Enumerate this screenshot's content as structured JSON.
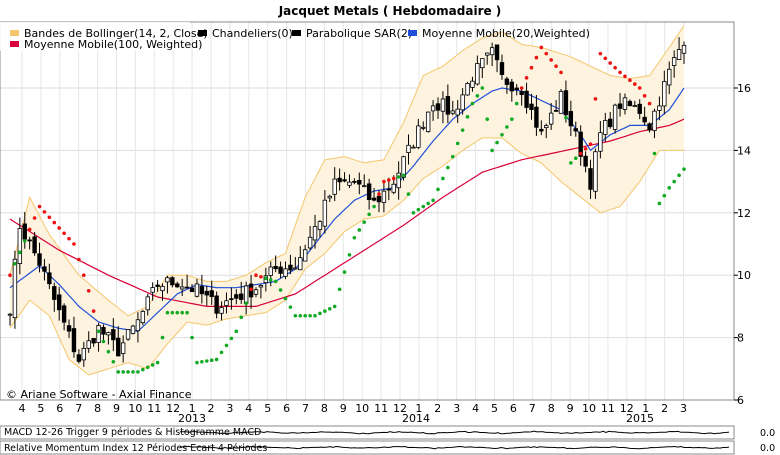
{
  "chart_data": {
    "type": "candlestick",
    "title": "Jacquet Metals  ( Hebdomadaire )",
    "legend": [
      {
        "label": "Bandes de Bollinger(14, 2, Close)",
        "color": "#f5c66b"
      },
      {
        "label": "Chandeliers(0)",
        "color": "#000000"
      },
      {
        "label": "Parabolique SAR(2)",
        "color": "#000000"
      },
      {
        "label": "Moyenne Mobile(20,Weighted)",
        "color": "#1f4fd8"
      },
      {
        "label": "Moyenne Mobile(100, Weighted)",
        "color": "#d8003a"
      }
    ],
    "legend_position": "top-left",
    "y_ticks": [
      "6",
      "8",
      "10",
      "12",
      "14",
      "16"
    ],
    "y_range": [
      6,
      18
    ],
    "x_month_labels": [
      "4",
      "5",
      "6",
      "7",
      "8",
      "9",
      "10",
      "11",
      "12",
      "1",
      "2",
      "3",
      "4",
      "5",
      "6",
      "7",
      "8",
      "9",
      "10",
      "11",
      "12",
      "1",
      "2",
      "3",
      "4",
      "5",
      "6",
      "7",
      "8",
      "9",
      "10",
      "11",
      "12",
      "1",
      "2",
      "3"
    ],
    "x_year_labels": [
      "2013",
      "2014",
      "2015"
    ],
    "grid": true,
    "series_key_points": {
      "close": [
        [
          0,
          9.0
        ],
        [
          2,
          11.6
        ],
        [
          6,
          10.4
        ],
        [
          10,
          8.8
        ],
        [
          14,
          7.3
        ],
        [
          18,
          8.3
        ],
        [
          22,
          7.6
        ],
        [
          26,
          8.5
        ],
        [
          30,
          9.7
        ],
        [
          34,
          9.8
        ],
        [
          38,
          9.5
        ],
        [
          42,
          9.0
        ],
        [
          46,
          9.3
        ],
        [
          50,
          9.6
        ],
        [
          54,
          10.2
        ],
        [
          58,
          10.3
        ],
        [
          62,
          11.5
        ],
        [
          66,
          12.9
        ],
        [
          70,
          13.0
        ],
        [
          74,
          12.3
        ],
        [
          78,
          13.0
        ],
        [
          82,
          14.3
        ],
        [
          86,
          15.6
        ],
        [
          90,
          15.2
        ],
        [
          94,
          16.4
        ],
        [
          98,
          17.1
        ],
        [
          100,
          16.3
        ],
        [
          104,
          16.0
        ],
        [
          108,
          14.5
        ],
        [
          112,
          15.7
        ],
        [
          116,
          14.0
        ],
        [
          118,
          13.0
        ],
        [
          120,
          14.5
        ],
        [
          124,
          15.5
        ],
        [
          128,
          15.3
        ],
        [
          130,
          14.8
        ],
        [
          134,
          16.5
        ],
        [
          137,
          17.6
        ]
      ],
      "ma20": [
        [
          0,
          9.6
        ],
        [
          6,
          10.3
        ],
        [
          10,
          9.7
        ],
        [
          14,
          9.0
        ],
        [
          18,
          8.5
        ],
        [
          22,
          8.3
        ],
        [
          26,
          8.2
        ],
        [
          30,
          8.8
        ],
        [
          34,
          9.4
        ],
        [
          38,
          9.7
        ],
        [
          42,
          9.6
        ],
        [
          46,
          9.6
        ],
        [
          50,
          9.7
        ],
        [
          54,
          9.8
        ],
        [
          58,
          10.2
        ],
        [
          62,
          11.0
        ],
        [
          66,
          11.8
        ],
        [
          70,
          12.4
        ],
        [
          74,
          12.7
        ],
        [
          78,
          12.8
        ],
        [
          82,
          13.5
        ],
        [
          86,
          14.3
        ],
        [
          90,
          15.0
        ],
        [
          94,
          15.5
        ],
        [
          98,
          15.9
        ],
        [
          100,
          16.0
        ],
        [
          104,
          15.9
        ],
        [
          108,
          15.6
        ],
        [
          112,
          15.3
        ],
        [
          116,
          14.5
        ],
        [
          118,
          14.0
        ],
        [
          122,
          14.5
        ],
        [
          126,
          14.8
        ],
        [
          130,
          14.8
        ],
        [
          134,
          15.3
        ],
        [
          137,
          16.0
        ]
      ],
      "ma100": [
        [
          0,
          11.8
        ],
        [
          10,
          10.8
        ],
        [
          20,
          10.0
        ],
        [
          30,
          9.3
        ],
        [
          40,
          9.0
        ],
        [
          50,
          9.0
        ],
        [
          58,
          9.4
        ],
        [
          64,
          10.0
        ],
        [
          72,
          10.8
        ],
        [
          80,
          11.6
        ],
        [
          88,
          12.5
        ],
        [
          96,
          13.3
        ],
        [
          104,
          13.7
        ],
        [
          110,
          13.9
        ],
        [
          116,
          14.1
        ],
        [
          122,
          14.3
        ],
        [
          128,
          14.6
        ],
        [
          134,
          14.8
        ],
        [
          137,
          15.0
        ]
      ],
      "bb_upper": [
        [
          0,
          10.0
        ],
        [
          4,
          12.5
        ],
        [
          8,
          11.3
        ],
        [
          14,
          10.0
        ],
        [
          20,
          9.2
        ],
        [
          24,
          8.7
        ],
        [
          28,
          9.0
        ],
        [
          32,
          10.0
        ],
        [
          36,
          10.0
        ],
        [
          40,
          9.8
        ],
        [
          44,
          9.8
        ],
        [
          48,
          10.0
        ],
        [
          52,
          10.4
        ],
        [
          56,
          10.7
        ],
        [
          60,
          12.5
        ],
        [
          64,
          13.7
        ],
        [
          68,
          13.8
        ],
        [
          72,
          13.6
        ],
        [
          76,
          13.7
        ],
        [
          80,
          14.9
        ],
        [
          84,
          16.4
        ],
        [
          88,
          16.7
        ],
        [
          92,
          17.2
        ],
        [
          96,
          17.6
        ],
        [
          100,
          17.8
        ],
        [
          104,
          17.4
        ],
        [
          108,
          17.3
        ],
        [
          112,
          17.1
        ],
        [
          114,
          17.0
        ],
        [
          118,
          16.7
        ],
        [
          122,
          16.4
        ],
        [
          126,
          16.3
        ],
        [
          130,
          16.4
        ],
        [
          134,
          17.3
        ],
        [
          137,
          18.0
        ]
      ],
      "bb_lower": [
        [
          0,
          8.3
        ],
        [
          4,
          9.2
        ],
        [
          8,
          8.7
        ],
        [
          12,
          7.3
        ],
        [
          16,
          6.8
        ],
        [
          20,
          7.0
        ],
        [
          24,
          7.2
        ],
        [
          28,
          7.0
        ],
        [
          32,
          7.8
        ],
        [
          36,
          8.5
        ],
        [
          40,
          8.4
        ],
        [
          44,
          8.6
        ],
        [
          48,
          8.7
        ],
        [
          52,
          8.8
        ],
        [
          56,
          9.2
        ],
        [
          60,
          10.2
        ],
        [
          64,
          10.7
        ],
        [
          68,
          11.4
        ],
        [
          72,
          11.8
        ],
        [
          76,
          11.9
        ],
        [
          80,
          12.4
        ],
        [
          84,
          13.1
        ],
        [
          88,
          13.5
        ],
        [
          92,
          14.0
        ],
        [
          96,
          14.4
        ],
        [
          100,
          14.4
        ],
        [
          104,
          13.9
        ],
        [
          108,
          13.6
        ],
        [
          112,
          13.0
        ],
        [
          116,
          12.5
        ],
        [
          120,
          12.0
        ],
        [
          124,
          12.2
        ],
        [
          128,
          13.0
        ],
        [
          132,
          14.0
        ],
        [
          137,
          14.0
        ]
      ]
    },
    "sar_key_points": [
      [
        0,
        10.0
      ],
      [
        6,
        12.2
      ],
      [
        13,
        11.0
      ],
      [
        16,
        9.5
      ],
      [
        18,
        8.2
      ],
      [
        22,
        6.9
      ],
      [
        26,
        6.9
      ],
      [
        30,
        7.2
      ],
      [
        32,
        8.8
      ],
      [
        36,
        8.8
      ],
      [
        38,
        7.2
      ],
      [
        42,
        7.3
      ],
      [
        46,
        8.2
      ],
      [
        50,
        10.0
      ],
      [
        54,
        9.8
      ],
      [
        58,
        8.7
      ],
      [
        62,
        8.7
      ],
      [
        66,
        9.0
      ],
      [
        70,
        11.2
      ],
      [
        74,
        12.2
      ],
      [
        76,
        13.0
      ],
      [
        80,
        13.2
      ],
      [
        82,
        12.0
      ],
      [
        86,
        12.4
      ],
      [
        90,
        13.8
      ],
      [
        94,
        15.5
      ],
      [
        96,
        16.0
      ],
      [
        98,
        14.0
      ],
      [
        102,
        15.0
      ],
      [
        104,
        16.0
      ],
      [
        108,
        17.3
      ],
      [
        112,
        16.5
      ],
      [
        114,
        13.6
      ],
      [
        118,
        14.2
      ],
      [
        120,
        17.1
      ],
      [
        124,
        16.5
      ],
      [
        128,
        16.0
      ],
      [
        130,
        15.5
      ],
      [
        132,
        12.3
      ],
      [
        134,
        12.8
      ],
      [
        137,
        13.4
      ]
    ],
    "sub_panels": [
      {
        "label": "MACD 12-26   Trigger 9 périodes & Histogramme MACD",
        "value": "0.0"
      },
      {
        "label": "Relative Momentum Index 12 Périodes   Ecart 4 Périodes",
        "value": "0.0"
      }
    ],
    "watermark": "© Ariane Software - Axial Finance"
  }
}
